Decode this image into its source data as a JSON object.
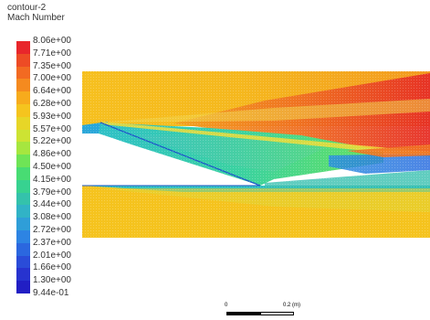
{
  "header": {
    "contour_name": "contour-2",
    "variable": "Mach Number"
  },
  "colorbar": {
    "labels": [
      "8.06e+00",
      "7.71e+00",
      "7.35e+00",
      "7.00e+00",
      "6.64e+00",
      "6.28e+00",
      "5.93e+00",
      "5.57e+00",
      "5.22e+00",
      "4.86e+00",
      "4.50e+00",
      "4.15e+00",
      "3.79e+00",
      "3.44e+00",
      "3.08e+00",
      "2.72e+00",
      "2.37e+00",
      "2.01e+00",
      "1.66e+00",
      "1.30e+00",
      "9.44e-01"
    ],
    "colors": [
      "#e8262b",
      "#ed4b25",
      "#f26a22",
      "#f58a1f",
      "#f7ab1c",
      "#f5c41e",
      "#e7d627",
      "#cde333",
      "#a6e63f",
      "#6fe456",
      "#48dc73",
      "#37d290",
      "#34c2ab",
      "#31b3c6",
      "#2f9ed8",
      "#2d84e3",
      "#2b67df",
      "#2a4cd8",
      "#2733cf",
      "#211ec4"
    ]
  },
  "scale": {
    "zero": "0",
    "end": "0.2 (m)"
  },
  "colors": {
    "background": "#ffffff",
    "text": "#333333"
  }
}
